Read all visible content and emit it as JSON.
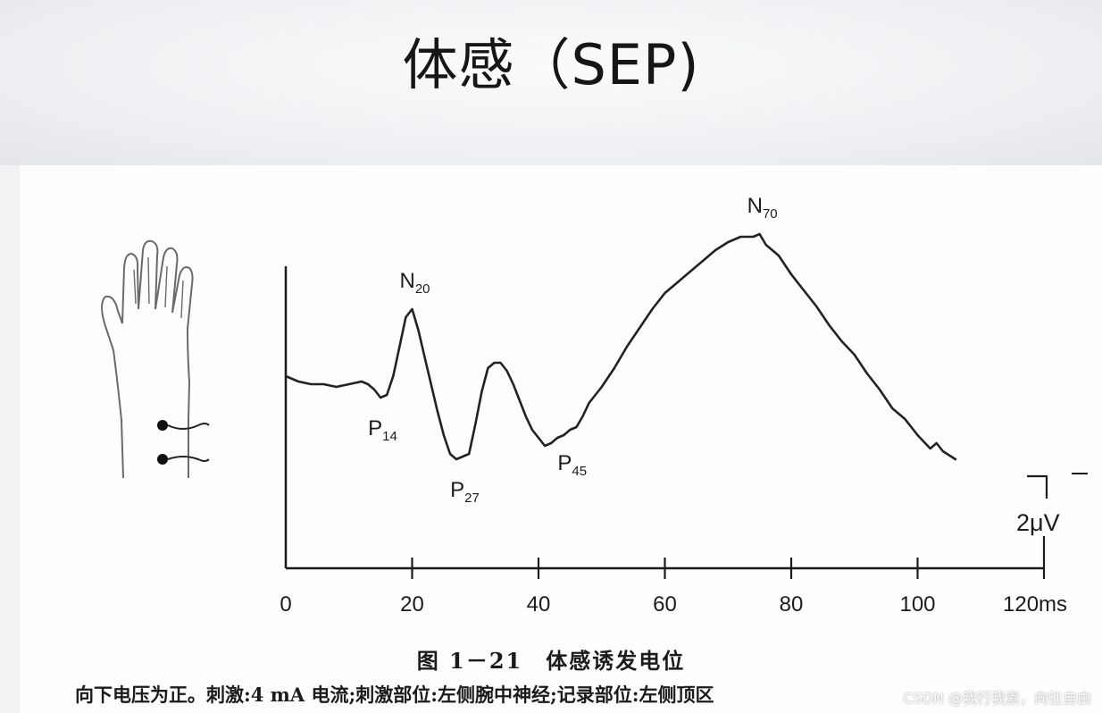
{
  "slide": {
    "title": "体感（SEP)"
  },
  "chart_data": {
    "type": "line",
    "title": "",
    "xlabel": "",
    "ylabel": "",
    "x_unit": "ms",
    "xlim": [
      0,
      120
    ],
    "x_ticks": [
      "0",
      "20",
      "40",
      "60",
      "80",
      "100",
      "120ms"
    ],
    "scale_bar_label": "2μV",
    "polarity": "negative-up",
    "series": [
      {
        "x": [
          0,
          2,
          4,
          6,
          8,
          10,
          12,
          13,
          14,
          15,
          16,
          17,
          18,
          19,
          20,
          21,
          22,
          23,
          24,
          25,
          26,
          27,
          28,
          29,
          30,
          31,
          32,
          33,
          34,
          35,
          36,
          37,
          38,
          39,
          40,
          41,
          42,
          43,
          44,
          45,
          46,
          47,
          48,
          50,
          52,
          54,
          56,
          58,
          60,
          62,
          64,
          66,
          68,
          70,
          72,
          74,
          75,
          76,
          78,
          80,
          82,
          84,
          86,
          88,
          90,
          92,
          94,
          96,
          98,
          100,
          102,
          103,
          104,
          106
        ],
        "y": [
          -0.3,
          -0.1,
          0.0,
          0.0,
          0.1,
          0.0,
          -0.1,
          0.0,
          0.2,
          0.5,
          0.4,
          -0.3,
          -1.4,
          -2.5,
          -2.8,
          -2.0,
          -1.0,
          0.0,
          1.0,
          1.9,
          2.6,
          2.8,
          2.7,
          2.6,
          1.5,
          0.3,
          -0.6,
          -0.8,
          -0.8,
          -0.5,
          0.0,
          0.6,
          1.2,
          1.7,
          2.0,
          2.3,
          2.2,
          2.0,
          1.9,
          1.7,
          1.6,
          1.2,
          0.7,
          0.1,
          -0.6,
          -1.4,
          -2.1,
          -2.8,
          -3.4,
          -3.8,
          -4.2,
          -4.6,
          -5.0,
          -5.3,
          -5.5,
          -5.5,
          -5.6,
          -5.2,
          -4.8,
          -4.1,
          -3.5,
          -2.9,
          -2.2,
          -1.6,
          -1.1,
          -0.4,
          0.2,
          0.9,
          1.3,
          1.9,
          2.4,
          2.2,
          2.5,
          2.8
        ]
      }
    ],
    "annotations": [
      {
        "base": "N",
        "sub": "20",
        "x": 20,
        "y": -2.8
      },
      {
        "base": "P",
        "sub": "14",
        "x": 15,
        "y": 0.5
      },
      {
        "base": "P",
        "sub": "27",
        "x": 28,
        "y": 2.8
      },
      {
        "base": "P",
        "sub": "45",
        "x": 45,
        "y": 1.8
      },
      {
        "base": "N",
        "sub": "70",
        "x": 75,
        "y": -5.6
      }
    ]
  },
  "caption": {
    "title": "图 1－21　体感诱发电位",
    "note": "向下电压为正。刺激:4 mA 电流;刺激部位:左侧腕中神经;记录部位:左侧顶区"
  },
  "watermark": "CSDN @我行我素，向往自由"
}
